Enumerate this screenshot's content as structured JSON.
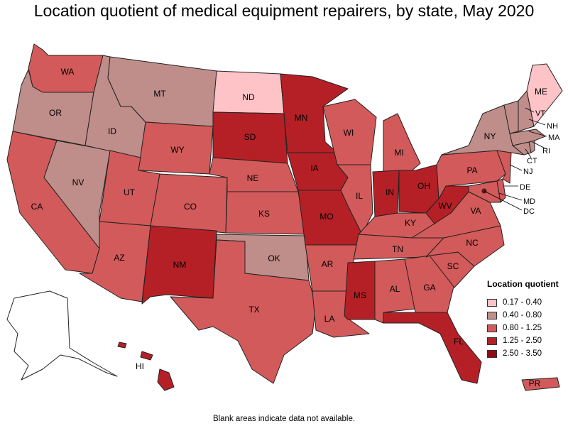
{
  "title": "Location quotient of medical equipment repairers, by state, May 2020",
  "footnote": "Blank areas indicate data not available.",
  "legend": {
    "title": "Location quotient",
    "items": [
      {
        "label": "0.17 - 0.40",
        "color": "#fdc3c7"
      },
      {
        "label": "0.40 - 0.80",
        "color": "#bf8d8a"
      },
      {
        "label": "0.80 - 1.25",
        "color": "#d35a5a"
      },
      {
        "label": "1.25 - 2.50",
        "color": "#b52026"
      },
      {
        "label": "2.50 - 3.50",
        "color": "#8f0a12"
      }
    ]
  },
  "states": {
    "WA": {
      "label": "WA",
      "class": 2
    },
    "OR": {
      "label": "OR",
      "class": 1
    },
    "CA": {
      "label": "CA",
      "class": 2
    },
    "ID": {
      "label": "ID",
      "class": 1
    },
    "NV": {
      "label": "NV",
      "class": 1
    },
    "MT": {
      "label": "MT",
      "class": 1
    },
    "WY": {
      "label": "WY",
      "class": 2
    },
    "UT": {
      "label": "UT",
      "class": 2
    },
    "AZ": {
      "label": "AZ",
      "class": 2
    },
    "CO": {
      "label": "CO",
      "class": 2
    },
    "NM": {
      "label": "NM",
      "class": 3
    },
    "ND": {
      "label": "ND",
      "class": 0
    },
    "SD": {
      "label": "SD",
      "class": 3
    },
    "NE": {
      "label": "NE",
      "class": 2
    },
    "KS": {
      "label": "KS",
      "class": 2
    },
    "OK": {
      "label": "OK",
      "class": 1
    },
    "TX": {
      "label": "TX",
      "class": 2
    },
    "MN": {
      "label": "MN",
      "class": 3
    },
    "IA": {
      "label": "IA",
      "class": 3
    },
    "MO": {
      "label": "MO",
      "class": 3
    },
    "AR": {
      "label": "AR",
      "class": 2
    },
    "LA": {
      "label": "LA",
      "class": 2
    },
    "WI": {
      "label": "WI",
      "class": 2
    },
    "IL": {
      "label": "IL",
      "class": 2
    },
    "MI": {
      "label": "MI",
      "class": 2
    },
    "IN": {
      "label": "IN",
      "class": 3
    },
    "OH": {
      "label": "OH",
      "class": 3
    },
    "KY": {
      "label": "KY",
      "class": 2
    },
    "TN": {
      "label": "TN",
      "class": 2
    },
    "MS": {
      "label": "MS",
      "class": 3
    },
    "AL": {
      "label": "AL",
      "class": 2
    },
    "GA": {
      "label": "GA",
      "class": 2
    },
    "FL": {
      "label": "FL",
      "class": 3
    },
    "SC": {
      "label": "SC",
      "class": 2
    },
    "NC": {
      "label": "NC",
      "class": 2
    },
    "VA": {
      "label": "VA",
      "class": 2
    },
    "WV": {
      "label": "WV",
      "class": 3
    },
    "PA": {
      "label": "PA",
      "class": 2
    },
    "NY": {
      "label": "NY",
      "class": 1
    },
    "ME": {
      "label": "ME",
      "class": 0
    },
    "VT": {
      "label": "VT",
      "class": 1
    },
    "NH": {
      "label": "NH",
      "class": 1
    },
    "MA": {
      "label": "MA",
      "class": 1
    },
    "RI": {
      "label": "RI",
      "class": 1
    },
    "CT": {
      "label": "CT",
      "class": 1
    },
    "NJ": {
      "label": "NJ",
      "class": 2
    },
    "DE": {
      "label": "DE",
      "class": 2
    },
    "MD": {
      "label": "MD",
      "class": 2
    },
    "DC": {
      "label": "DC",
      "class": 4
    },
    "AK": {
      "label": "",
      "class": null
    },
    "HI": {
      "label": "HI",
      "class": 3
    },
    "PR": {
      "label": "PR",
      "class": 2
    }
  }
}
